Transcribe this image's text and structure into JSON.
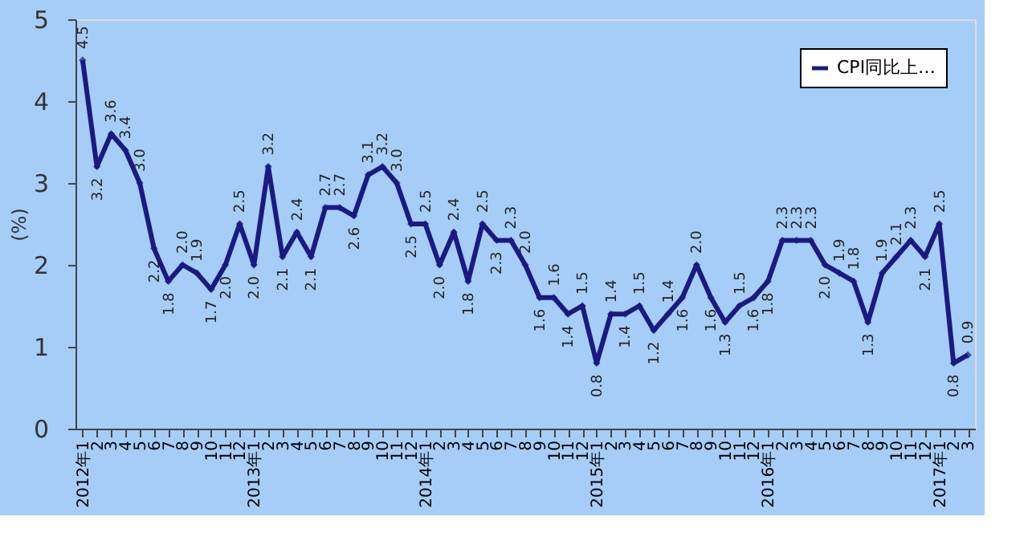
{
  "chart_data": {
    "type": "line",
    "ylabel": "(%)",
    "categories": [
      "2012年1",
      "2",
      "3",
      "4",
      "5",
      "6",
      "7",
      "8",
      "9",
      "10",
      "11",
      "12",
      "2013年1",
      "2",
      "3",
      "4",
      "5",
      "6",
      "7",
      "8",
      "9",
      "10",
      "11",
      "12",
      "2014年1",
      "2",
      "3",
      "4",
      "5",
      "6",
      "7",
      "8",
      "9",
      "10",
      "11",
      "12",
      "2015年1",
      "2",
      "3",
      "4",
      "5",
      "6",
      "7",
      "8",
      "9",
      "10",
      "11",
      "12",
      "2016年1",
      "2",
      "3",
      "4",
      "5",
      "6",
      "7",
      "8",
      "9",
      "10",
      "11",
      "12",
      "2017年1",
      "2",
      "3"
    ],
    "series": [
      {
        "name": "CPI同比上…",
        "color": "#1a1a80",
        "values": [
          4.5,
          3.2,
          3.6,
          3.4,
          3.0,
          2.2,
          1.8,
          2.0,
          1.9,
          1.7,
          2.0,
          2.5,
          2.0,
          3.2,
          2.1,
          2.4,
          2.1,
          2.7,
          2.7,
          2.6,
          3.1,
          3.2,
          3.0,
          2.5,
          2.5,
          2.0,
          2.4,
          1.8,
          2.5,
          2.3,
          2.3,
          2.0,
          1.6,
          1.6,
          1.4,
          1.5,
          0.8,
          1.4,
          1.4,
          1.5,
          1.2,
          1.4,
          1.6,
          2.0,
          1.6,
          1.3,
          1.5,
          1.6,
          1.8,
          2.3,
          2.3,
          2.3,
          2.0,
          1.9,
          1.8,
          1.3,
          1.9,
          2.1,
          2.3,
          2.1,
          2.5,
          0.8,
          0.9
        ],
        "value_labels": [
          "4.5",
          "3.2",
          "3.6",
          "3.4",
          "3.0",
          "2.2",
          "1.8",
          "2.0",
          "1.9",
          "1.7",
          "2.0",
          "2.5",
          "2.0",
          "3.2",
          "2.1",
          "2.4",
          "2.1",
          "2.7",
          "2.7",
          "2.6",
          "3.1",
          "3.2",
          "3.0",
          "2.5",
          "2.5",
          "2.0",
          "2.4",
          "1.8",
          "2.5",
          "2.3",
          "2.3",
          "2.0",
          "1.6",
          "1.6",
          "1.4",
          "1.5",
          "0.8",
          "1.4",
          "1.4",
          "1.5",
          "1.2",
          "1.4",
          "1.6",
          "2.0",
          "1.6",
          "1.3",
          "1.5",
          "1.6",
          "1.8",
          "2.3",
          "2.3",
          "2.3",
          "2.0",
          "1.9",
          "1.8",
          "1.3",
          "1.9",
          "2.1",
          "2.3",
          "2.1",
          "2.5",
          "0.8",
          "0.9"
        ]
      }
    ],
    "ylim": [
      0,
      5
    ],
    "yticks": [
      0,
      1,
      2,
      3,
      4,
      5
    ],
    "grid": false,
    "legend": "top right",
    "marker": "diamond",
    "line_style": "solid"
  }
}
